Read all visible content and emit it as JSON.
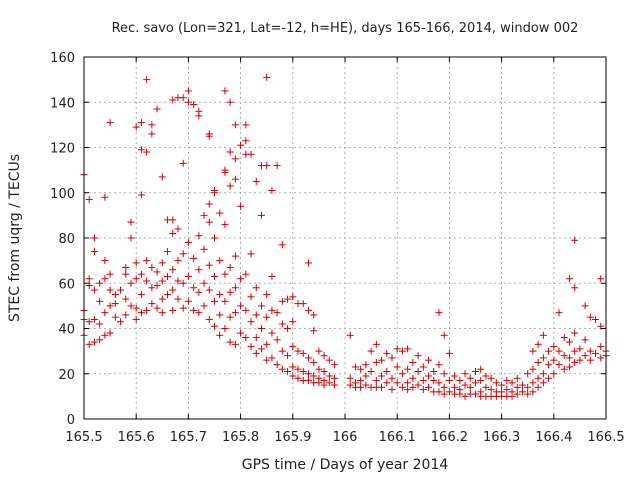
{
  "chart_data": {
    "type": "scatter",
    "title": "Rec. savo (Lon=321, Lat=-12, h=HE), days 165-166, 2014, window 002",
    "xlabel": "GPS time / Days of year 2014",
    "ylabel": "STEC from uqrg / TECUs",
    "xlim": [
      165.5,
      166.5
    ],
    "ylim": [
      0,
      160
    ],
    "xticks": [
      165.5,
      165.6,
      165.7,
      165.8,
      165.9,
      166,
      166.1,
      166.2,
      166.3,
      166.4,
      166.5
    ],
    "xtick_labels": [
      "165.5",
      "165.6",
      "165.7",
      "165.8",
      "165.9",
      "166",
      "166.1",
      "166.2",
      "166.3",
      "166.4",
      "166.5"
    ],
    "yticks": [
      0,
      20,
      40,
      60,
      80,
      100,
      120,
      140,
      160
    ],
    "ytick_labels": [
      "0",
      "20",
      "40",
      "60",
      "80",
      "100",
      "120",
      "140",
      "160"
    ],
    "grid": true,
    "marker": "+",
    "color": "#d40000",
    "points": [
      [
        165.5,
        108
      ],
      [
        165.5,
        48
      ],
      [
        165.5,
        44
      ],
      [
        165.5,
        37
      ],
      [
        165.51,
        97
      ],
      [
        165.51,
        62
      ],
      [
        165.51,
        59
      ],
      [
        165.51,
        43
      ],
      [
        165.51,
        33
      ],
      [
        165.52,
        80
      ],
      [
        165.52,
        74
      ],
      [
        165.52,
        57
      ],
      [
        165.52,
        44
      ],
      [
        165.52,
        34
      ],
      [
        165.53,
        60
      ],
      [
        165.53,
        52
      ],
      [
        165.53,
        42
      ],
      [
        165.53,
        35
      ],
      [
        165.54,
        98
      ],
      [
        165.54,
        70
      ],
      [
        165.54,
        62
      ],
      [
        165.54,
        47
      ],
      [
        165.54,
        37
      ],
      [
        165.55,
        131
      ],
      [
        165.55,
        64
      ],
      [
        165.55,
        57
      ],
      [
        165.55,
        50
      ],
      [
        165.55,
        38
      ],
      [
        165.56,
        55
      ],
      [
        165.56,
        51
      ],
      [
        165.56,
        45
      ],
      [
        165.57,
        57
      ],
      [
        165.57,
        43
      ],
      [
        165.58,
        67
      ],
      [
        165.58,
        64
      ],
      [
        165.58,
        53
      ],
      [
        165.58,
        46
      ],
      [
        165.59,
        87
      ],
      [
        165.59,
        80
      ],
      [
        165.59,
        60
      ],
      [
        165.59,
        50
      ],
      [
        165.6,
        129
      ],
      [
        165.6,
        69
      ],
      [
        165.6,
        62
      ],
      [
        165.6,
        49
      ],
      [
        165.6,
        44
      ],
      [
        165.61,
        131
      ],
      [
        165.61,
        119
      ],
      [
        165.61,
        99
      ],
      [
        165.61,
        64
      ],
      [
        165.61,
        55
      ],
      [
        165.61,
        47
      ],
      [
        165.62,
        150
      ],
      [
        165.62,
        118
      ],
      [
        165.62,
        70
      ],
      [
        165.62,
        61
      ],
      [
        165.62,
        48
      ],
      [
        165.63,
        130
      ],
      [
        165.63,
        126
      ],
      [
        165.63,
        67
      ],
      [
        165.63,
        58
      ],
      [
        165.63,
        51
      ],
      [
        165.64,
        137
      ],
      [
        165.64,
        65
      ],
      [
        165.64,
        59
      ],
      [
        165.64,
        49
      ],
      [
        165.65,
        107
      ],
      [
        165.65,
        69
      ],
      [
        165.65,
        61
      ],
      [
        165.65,
        53
      ],
      [
        165.65,
        47
      ],
      [
        165.66,
        88
      ],
      [
        165.66,
        74
      ],
      [
        165.66,
        63
      ],
      [
        165.66,
        55
      ],
      [
        165.67,
        141
      ],
      [
        165.67,
        88
      ],
      [
        165.67,
        82
      ],
      [
        165.67,
        66
      ],
      [
        165.67,
        57
      ],
      [
        165.67,
        48
      ],
      [
        165.68,
        142
      ],
      [
        165.68,
        84
      ],
      [
        165.68,
        70
      ],
      [
        165.68,
        61
      ],
      [
        165.68,
        53
      ],
      [
        165.69,
        113
      ],
      [
        165.69,
        142
      ],
      [
        165.69,
        73
      ],
      [
        165.69,
        60
      ],
      [
        165.69,
        49
      ],
      [
        165.7,
        145
      ],
      [
        165.7,
        140
      ],
      [
        165.7,
        78
      ],
      [
        165.7,
        63
      ],
      [
        165.7,
        52
      ],
      [
        165.71,
        139
      ],
      [
        165.71,
        71
      ],
      [
        165.71,
        58
      ],
      [
        165.71,
        48
      ],
      [
        165.72,
        136
      ],
      [
        165.72,
        134
      ],
      [
        165.72,
        81
      ],
      [
        165.72,
        66
      ],
      [
        165.72,
        56
      ],
      [
        165.72,
        47
      ],
      [
        165.73,
        90
      ],
      [
        165.73,
        75
      ],
      [
        165.73,
        60
      ],
      [
        165.73,
        50
      ],
      [
        165.74,
        126
      ],
      [
        165.74,
        125
      ],
      [
        165.74,
        95
      ],
      [
        165.74,
        87
      ],
      [
        165.74,
        68
      ],
      [
        165.74,
        57
      ],
      [
        165.74,
        44
      ],
      [
        165.75,
        101
      ],
      [
        165.75,
        100
      ],
      [
        165.75,
        80
      ],
      [
        165.75,
        63
      ],
      [
        165.75,
        52
      ],
      [
        165.75,
        41
      ],
      [
        165.76,
        91
      ],
      [
        165.76,
        70
      ],
      [
        165.76,
        55
      ],
      [
        165.76,
        46
      ],
      [
        165.76,
        37
      ],
      [
        165.77,
        145
      ],
      [
        165.77,
        110
      ],
      [
        165.77,
        109
      ],
      [
        165.77,
        86
      ],
      [
        165.77,
        64
      ],
      [
        165.77,
        52
      ],
      [
        165.77,
        40
      ],
      [
        165.78,
        140
      ],
      [
        165.78,
        118
      ],
      [
        165.78,
        103
      ],
      [
        165.78,
        67
      ],
      [
        165.78,
        56
      ],
      [
        165.78,
        45
      ],
      [
        165.78,
        34
      ],
      [
        165.79,
        130
      ],
      [
        165.79,
        115
      ],
      [
        165.79,
        106
      ],
      [
        165.79,
        72
      ],
      [
        165.79,
        58
      ],
      [
        165.79,
        47
      ],
      [
        165.79,
        33
      ],
      [
        165.8,
        121
      ],
      [
        165.8,
        94
      ],
      [
        165.8,
        62
      ],
      [
        165.8,
        50
      ],
      [
        165.8,
        38
      ],
      [
        165.81,
        130
      ],
      [
        165.81,
        123
      ],
      [
        165.81,
        117
      ],
      [
        165.81,
        64
      ],
      [
        165.81,
        48
      ],
      [
        165.81,
        36
      ],
      [
        165.82,
        117
      ],
      [
        165.82,
        73
      ],
      [
        165.82,
        54
      ],
      [
        165.82,
        43
      ],
      [
        165.82,
        32
      ],
      [
        165.83,
        105
      ],
      [
        165.83,
        58
      ],
      [
        165.83,
        46
      ],
      [
        165.83,
        36
      ],
      [
        165.83,
        29
      ],
      [
        165.84,
        112
      ],
      [
        165.84,
        90
      ],
      [
        165.84,
        50
      ],
      [
        165.84,
        40
      ],
      [
        165.84,
        31
      ],
      [
        165.85,
        151
      ],
      [
        165.85,
        112
      ],
      [
        165.85,
        55
      ],
      [
        165.85,
        45
      ],
      [
        165.85,
        33
      ],
      [
        165.85,
        26
      ],
      [
        165.86,
        101
      ],
      [
        165.86,
        63
      ],
      [
        165.86,
        48
      ],
      [
        165.86,
        38
      ],
      [
        165.86,
        27
      ],
      [
        165.87,
        112
      ],
      [
        165.87,
        47
      ],
      [
        165.87,
        35
      ],
      [
        165.87,
        24
      ],
      [
        165.88,
        77
      ],
      [
        165.88,
        52
      ],
      [
        165.88,
        42
      ],
      [
        165.88,
        30
      ],
      [
        165.88,
        22
      ],
      [
        165.89,
        53
      ],
      [
        165.89,
        40
      ],
      [
        165.89,
        28
      ],
      [
        165.89,
        21
      ],
      [
        165.9,
        54
      ],
      [
        165.9,
        43
      ],
      [
        165.9,
        32
      ],
      [
        165.9,
        23
      ],
      [
        165.9,
        19
      ],
      [
        165.91,
        51
      ],
      [
        165.91,
        30
      ],
      [
        165.91,
        22
      ],
      [
        165.91,
        18
      ],
      [
        165.92,
        51
      ],
      [
        165.92,
        29
      ],
      [
        165.92,
        21
      ],
      [
        165.92,
        17
      ],
      [
        165.93,
        69
      ],
      [
        165.93,
        48
      ],
      [
        165.93,
        27
      ],
      [
        165.93,
        20
      ],
      [
        165.93,
        17
      ],
      [
        165.94,
        46
      ],
      [
        165.94,
        39
      ],
      [
        165.94,
        25
      ],
      [
        165.94,
        19
      ],
      [
        165.94,
        16
      ],
      [
        165.95,
        30
      ],
      [
        165.95,
        22
      ],
      [
        165.95,
        18
      ],
      [
        165.95,
        16
      ],
      [
        165.96,
        28
      ],
      [
        165.96,
        21
      ],
      [
        165.96,
        17
      ],
      [
        165.96,
        15
      ],
      [
        165.97,
        26
      ],
      [
        165.97,
        19
      ],
      [
        165.97,
        16
      ],
      [
        165.98,
        24
      ],
      [
        165.98,
        18
      ],
      [
        165.98,
        15
      ],
      [
        166.01,
        37
      ],
      [
        166.01,
        18
      ],
      [
        166.01,
        15
      ],
      [
        166.02,
        23
      ],
      [
        166.02,
        16
      ],
      [
        166.02,
        14
      ],
      [
        166.03,
        22
      ],
      [
        166.03,
        17
      ],
      [
        166.03,
        14
      ],
      [
        166.04,
        24
      ],
      [
        166.04,
        19
      ],
      [
        166.04,
        15
      ],
      [
        166.05,
        30
      ],
      [
        166.05,
        21
      ],
      [
        166.05,
        14
      ],
      [
        166.06,
        33
      ],
      [
        166.06,
        25
      ],
      [
        166.06,
        17
      ],
      [
        166.06,
        14
      ],
      [
        166.07,
        26
      ],
      [
        166.07,
        19
      ],
      [
        166.07,
        14
      ],
      [
        166.08,
        29
      ],
      [
        166.08,
        21
      ],
      [
        166.08,
        16
      ],
      [
        166.09,
        27
      ],
      [
        166.09,
        18
      ],
      [
        166.09,
        13
      ],
      [
        166.1,
        31
      ],
      [
        166.1,
        23
      ],
      [
        166.1,
        16
      ],
      [
        166.11,
        30
      ],
      [
        166.11,
        20
      ],
      [
        166.11,
        14
      ],
      [
        166.12,
        31
      ],
      [
        166.12,
        22
      ],
      [
        166.12,
        16
      ],
      [
        166.12,
        13
      ],
      [
        166.13,
        25
      ],
      [
        166.13,
        18
      ],
      [
        166.13,
        14
      ],
      [
        166.14,
        28
      ],
      [
        166.14,
        21
      ],
      [
        166.14,
        15
      ],
      [
        166.15,
        23
      ],
      [
        166.15,
        17
      ],
      [
        166.15,
        13
      ],
      [
        166.16,
        26
      ],
      [
        166.16,
        19
      ],
      [
        166.16,
        14
      ],
      [
        166.17,
        21
      ],
      [
        166.17,
        17
      ],
      [
        166.17,
        12
      ],
      [
        166.18,
        47
      ],
      [
        166.18,
        24
      ],
      [
        166.18,
        16
      ],
      [
        166.18,
        12
      ],
      [
        166.19,
        37
      ],
      [
        166.19,
        20
      ],
      [
        166.19,
        14
      ],
      [
        166.19,
        11
      ],
      [
        166.2,
        29
      ],
      [
        166.2,
        17
      ],
      [
        166.2,
        12
      ],
      [
        166.21,
        19
      ],
      [
        166.21,
        14
      ],
      [
        166.21,
        11
      ],
      [
        166.22,
        17
      ],
      [
        166.22,
        13
      ],
      [
        166.22,
        11
      ],
      [
        166.23,
        20
      ],
      [
        166.23,
        15
      ],
      [
        166.23,
        10
      ],
      [
        166.24,
        18
      ],
      [
        166.24,
        14
      ],
      [
        166.24,
        11
      ],
      [
        166.25,
        21
      ],
      [
        166.25,
        16
      ],
      [
        166.25,
        11
      ],
      [
        166.26,
        22
      ],
      [
        166.26,
        17
      ],
      [
        166.26,
        12
      ],
      [
        166.26,
        10
      ],
      [
        166.27,
        19
      ],
      [
        166.27,
        14
      ],
      [
        166.27,
        10
      ],
      [
        166.28,
        18
      ],
      [
        166.28,
        13
      ],
      [
        166.28,
        10
      ],
      [
        166.29,
        16
      ],
      [
        166.29,
        12
      ],
      [
        166.29,
        10
      ],
      [
        166.3,
        15
      ],
      [
        166.3,
        12
      ],
      [
        166.3,
        10
      ],
      [
        166.31,
        17
      ],
      [
        166.31,
        13
      ],
      [
        166.31,
        10
      ],
      [
        166.32,
        16
      ],
      [
        166.32,
        12
      ],
      [
        166.32,
        10
      ],
      [
        166.33,
        18
      ],
      [
        166.33,
        14
      ],
      [
        166.33,
        11
      ],
      [
        166.34,
        15
      ],
      [
        166.34,
        12
      ],
      [
        166.35,
        20
      ],
      [
        166.35,
        14
      ],
      [
        166.35,
        11
      ],
      [
        166.36,
        30
      ],
      [
        166.36,
        22
      ],
      [
        166.36,
        16
      ],
      [
        166.36,
        12
      ],
      [
        166.37,
        33
      ],
      [
        166.37,
        25
      ],
      [
        166.37,
        18
      ],
      [
        166.37,
        14
      ],
      [
        166.38,
        37
      ],
      [
        166.38,
        27
      ],
      [
        166.38,
        20
      ],
      [
        166.38,
        16
      ],
      [
        166.39,
        30
      ],
      [
        166.39,
        24
      ],
      [
        166.39,
        18
      ],
      [
        166.4,
        32
      ],
      [
        166.4,
        26
      ],
      [
        166.4,
        20
      ],
      [
        166.41,
        47
      ],
      [
        166.41,
        30
      ],
      [
        166.41,
        24
      ],
      [
        166.42,
        36
      ],
      [
        166.42,
        28
      ],
      [
        166.42,
        22
      ],
      [
        166.43,
        62
      ],
      [
        166.43,
        34
      ],
      [
        166.43,
        27
      ],
      [
        166.43,
        23
      ],
      [
        166.44,
        79
      ],
      [
        166.44,
        58
      ],
      [
        166.44,
        38
      ],
      [
        166.44,
        30
      ],
      [
        166.44,
        25
      ],
      [
        166.45,
        31
      ],
      [
        166.45,
        26
      ],
      [
        166.46,
        50
      ],
      [
        166.46,
        35
      ],
      [
        166.46,
        28
      ],
      [
        166.47,
        45
      ],
      [
        166.47,
        30
      ],
      [
        166.47,
        26
      ],
      [
        166.48,
        44
      ],
      [
        166.48,
        29
      ],
      [
        166.49,
        62
      ],
      [
        166.49,
        41
      ],
      [
        166.49,
        32
      ],
      [
        166.49,
        27
      ],
      [
        166.5,
        30
      ],
      [
        166.5,
        28
      ]
    ]
  }
}
